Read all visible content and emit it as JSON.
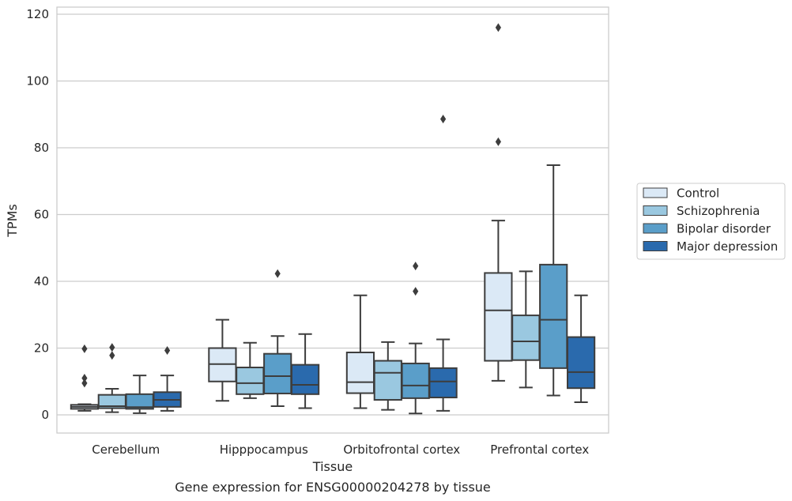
{
  "chart_data": {
    "type": "box",
    "title": "",
    "caption": "Gene expression for ENSG00000204278 by tissue",
    "xlabel": "Tissue",
    "ylabel": "TPMs",
    "ylim": [
      -5,
      122
    ],
    "yticks": [
      0,
      20,
      40,
      60,
      80,
      100,
      120
    ],
    "grid": "horizontal",
    "legend_position": "right",
    "categories": [
      "Cerebellum",
      "Hipppocampus",
      "Orbitofrontal cortex",
      "Prefrontal cortex"
    ],
    "series": [
      {
        "name": "Control",
        "color": "#dbe9f6",
        "boxes": [
          {
            "whisker_low": 1.2,
            "q1": 1.8,
            "median": 2.4,
            "q3": 3.0,
            "whisker_high": 3.2,
            "outliers": [
              19.8,
              11.0,
              9.5
            ]
          },
          {
            "whisker_low": 4.2,
            "q1": 10.0,
            "median": 15.2,
            "q3": 20.0,
            "whisker_high": 28.5,
            "outliers": []
          },
          {
            "whisker_low": 2.0,
            "q1": 6.5,
            "median": 9.8,
            "q3": 18.7,
            "whisker_high": 35.8,
            "outliers": []
          },
          {
            "whisker_low": 10.2,
            "q1": 16.2,
            "median": 31.3,
            "q3": 42.5,
            "whisker_high": 58.2,
            "outliers": [
              116.0,
              81.8
            ]
          }
        ]
      },
      {
        "name": "Schizophrenia",
        "color": "#9ac8e0",
        "boxes": [
          {
            "whisker_low": 0.8,
            "q1": 2.0,
            "median": 2.6,
            "q3": 6.0,
            "whisker_high": 7.8,
            "outliers": [
              20.2,
              17.8
            ]
          },
          {
            "whisker_low": 5.0,
            "q1": 6.2,
            "median": 9.5,
            "q3": 14.2,
            "whisker_high": 21.6,
            "outliers": []
          },
          {
            "whisker_low": 1.5,
            "q1": 4.5,
            "median": 12.6,
            "q3": 16.2,
            "whisker_high": 21.8,
            "outliers": []
          },
          {
            "whisker_low": 8.2,
            "q1": 16.4,
            "median": 22.0,
            "q3": 29.8,
            "whisker_high": 43.0,
            "outliers": []
          }
        ]
      },
      {
        "name": "Bipolar disorder",
        "color": "#5a9ec9",
        "boxes": [
          {
            "whisker_low": 0.5,
            "q1": 1.8,
            "median": 2.3,
            "q3": 6.2,
            "whisker_high": 11.8,
            "outliers": []
          },
          {
            "whisker_low": 2.6,
            "q1": 6.4,
            "median": 11.6,
            "q3": 18.3,
            "whisker_high": 23.6,
            "outliers": [
              42.3
            ]
          },
          {
            "whisker_low": 0.4,
            "q1": 5.0,
            "median": 8.8,
            "q3": 15.4,
            "whisker_high": 21.4,
            "outliers": [
              44.6,
              37.0
            ]
          },
          {
            "whisker_low": 5.8,
            "q1": 14.0,
            "median": 28.5,
            "q3": 45.0,
            "whisker_high": 74.8,
            "outliers": []
          }
        ]
      },
      {
        "name": "Major depression",
        "color": "#2a6aad",
        "boxes": [
          {
            "whisker_low": 1.2,
            "q1": 2.4,
            "median": 4.5,
            "q3": 6.8,
            "whisker_high": 11.8,
            "outliers": [
              19.3
            ]
          },
          {
            "whisker_low": 2.0,
            "q1": 6.2,
            "median": 9.0,
            "q3": 15.0,
            "whisker_high": 24.2,
            "outliers": []
          },
          {
            "whisker_low": 1.2,
            "q1": 5.2,
            "median": 10.0,
            "q3": 14.0,
            "whisker_high": 22.6,
            "outliers": [
              88.6
            ]
          },
          {
            "whisker_low": 3.8,
            "q1": 8.0,
            "median": 12.8,
            "q3": 23.3,
            "whisker_high": 35.8,
            "outliers": []
          }
        ]
      }
    ]
  }
}
